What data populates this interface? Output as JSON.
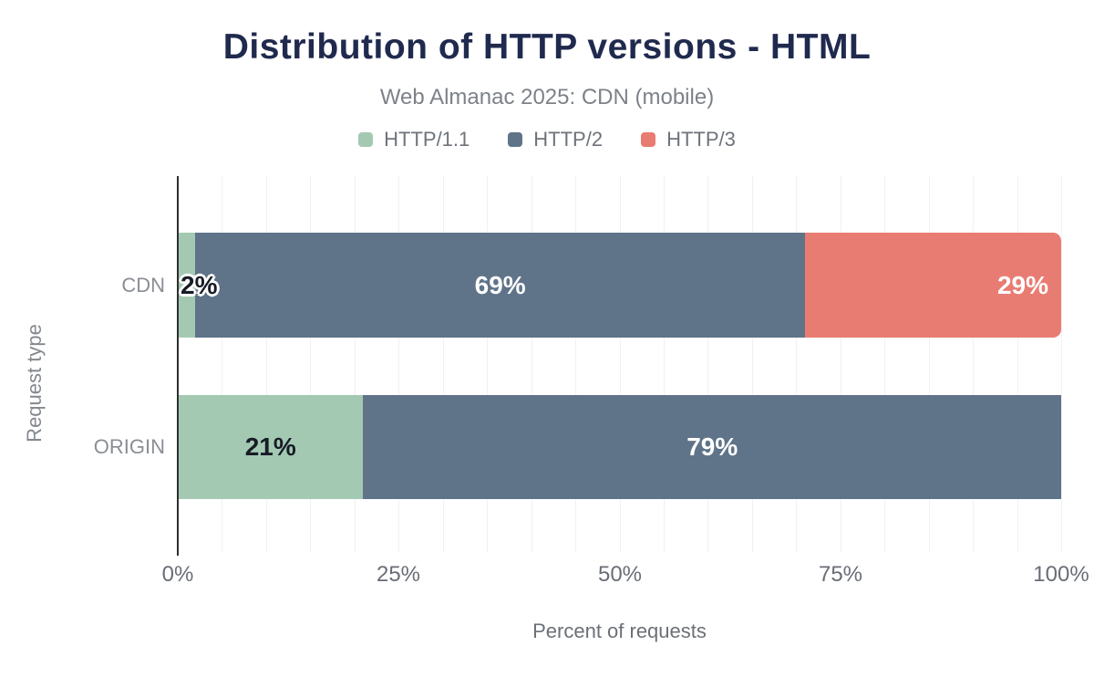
{
  "chart_data": {
    "type": "bar",
    "variant": "horizontal-stacked",
    "title": "Distribution of HTTP versions - HTML",
    "subtitle": "Web Almanac 2025: CDN (mobile)",
    "xlabel": "Percent of requests",
    "ylabel": "Request type",
    "categories": [
      "CDN",
      "ORIGIN"
    ],
    "series": [
      {
        "name": "HTTP/1.1",
        "color": "#a4c9b3",
        "values": [
          2,
          21
        ],
        "labels": [
          "2%",
          "21%"
        ],
        "label_color": "#171c26",
        "label_mode": [
          "overflow",
          "center"
        ],
        "rounded_end": false
      },
      {
        "name": "HTTP/2",
        "color": "#5f7389",
        "values": [
          69,
          79
        ],
        "labels": [
          "69%",
          "79%"
        ],
        "label_color": "#ffffff",
        "label_mode": [
          "center",
          "center"
        ],
        "rounded_end": false
      },
      {
        "name": "HTTP/3",
        "color": "#e87c72",
        "values": [
          29,
          0
        ],
        "labels": [
          "29%",
          ""
        ],
        "label_color": "#ffffff",
        "label_mode": [
          "right",
          "none"
        ],
        "rounded_end": true
      }
    ],
    "xlim": [
      0,
      100
    ],
    "xticks": [
      {
        "label": "0%",
        "value": 0
      },
      {
        "label": "25%",
        "value": 25
      },
      {
        "label": "50%",
        "value": 50
      },
      {
        "label": "75%",
        "value": 75
      },
      {
        "label": "100%",
        "value": 100
      }
    ],
    "grid": {
      "show": true,
      "minor_step_percent": 5,
      "color": "#f1f1f3"
    },
    "legend_position": "top",
    "colors": {
      "title": "#202a4e",
      "subtitle": "#7d8289",
      "axis_line": "#2e2e30",
      "tick_text": "#696e76",
      "category_text": "#8a8e95",
      "background": "#ffffff"
    }
  }
}
